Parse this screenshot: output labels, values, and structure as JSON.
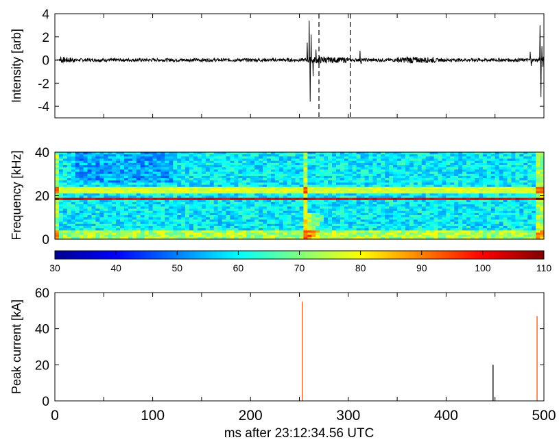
{
  "chart_data": [
    {
      "type": "line",
      "ylabel": "Intensity [arb]",
      "ylim": [
        -5,
        4
      ],
      "yticks": [
        -4,
        -2,
        0,
        2,
        4
      ],
      "xlim": [
        0,
        500
      ],
      "grid": false,
      "dashed_lines_x": [
        270,
        302
      ],
      "series": [
        {
          "values_note": "waveform trace",
          "x": [
            0,
            5,
            6,
            7,
            20,
            60,
            100,
            150,
            200,
            240,
            255,
            258,
            260,
            261,
            262,
            264,
            267,
            270,
            275,
            280,
            290,
            300,
            305,
            310,
            312,
            313,
            314,
            318,
            330,
            350,
            360,
            370,
            390,
            400,
            420,
            450,
            470,
            480,
            486,
            487,
            488,
            490,
            495,
            496,
            497,
            498,
            499,
            500
          ],
          "y": [
            0,
            0.1,
            0.3,
            -0.2,
            0.1,
            -0.1,
            0.1,
            -0.1,
            0.1,
            -0.1,
            0.1,
            1.5,
            3.4,
            -3.6,
            2.2,
            -1.4,
            0.9,
            -0.5,
            0.3,
            -0.2,
            0.2,
            0.1,
            -0.1,
            0.1,
            0.8,
            -0.3,
            0.1,
            0.1,
            -0.1,
            0.2,
            0.3,
            -0.2,
            0.1,
            -0.1,
            0.1,
            0.1,
            -0.1,
            0.1,
            0.7,
            -0.5,
            0.1,
            0.1,
            0.2,
            3.0,
            -3.2,
            1.2,
            -0.6,
            0.2
          ]
        }
      ]
    },
    {
      "type": "heatmap",
      "ylabel": "Frequency [kHz]",
      "ylim": [
        0,
        40
      ],
      "yticks": [
        0,
        20,
        40
      ],
      "xlim": [
        0,
        500
      ],
      "colorbar": {
        "min": 30,
        "max": 110,
        "ticks": [
          30,
          40,
          50,
          60,
          70,
          80,
          90,
          100,
          110
        ],
        "colormap": "jet"
      }
    },
    {
      "type": "bar",
      "ylabel": "Peak current [kA]",
      "xlabel": "ms after 23:12:34.56 UTC",
      "ylim": [
        0,
        60
      ],
      "yticks": [
        0,
        20,
        40,
        60
      ],
      "xlim": [
        0,
        500
      ],
      "xticks": [
        0,
        100,
        200,
        300,
        400,
        500
      ],
      "series": [
        {
          "x": 253,
          "value": 55,
          "color": "#e8541a"
        },
        {
          "x": 448,
          "value": 20,
          "color": "#000000"
        },
        {
          "x": 493,
          "value": 47,
          "color": "#e8541a"
        }
      ]
    }
  ]
}
